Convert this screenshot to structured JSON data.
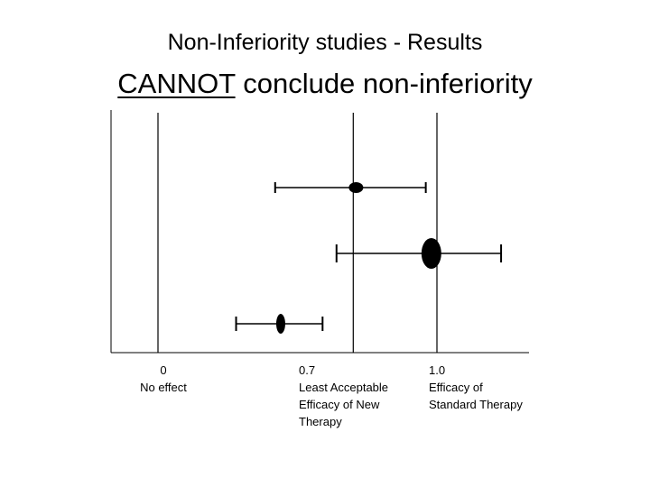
{
  "title": "Non-Inferiority studies - Results",
  "subtitle": {
    "emphasis": "CANNOT",
    "rest": " conclude non-inferiority"
  },
  "chart_data": {
    "type": "scatter",
    "title": "Non-Inferiority studies - Results",
    "subtitle": "CANNOT conclude non-inferiority",
    "xlim": [
      -0.2,
      1.4
    ],
    "grid": false,
    "reference_lines": [
      {
        "x": 0,
        "label_value": "0",
        "label_text": "No effect"
      },
      {
        "x": 0.7,
        "label_value": "0.7",
        "label_text": "Least Acceptable Efficacy of New Therapy"
      },
      {
        "x": 1.0,
        "label_value": "1.0",
        "label_text": "Efficacy of Standard Therapy"
      }
    ],
    "studies": [
      {
        "estimate": 0.71,
        "ci_low": 0.42,
        "ci_high": 0.96
      },
      {
        "estimate": 0.98,
        "ci_low": 0.64,
        "ci_high": 1.23
      },
      {
        "estimate": 0.44,
        "ci_low": 0.28,
        "ci_high": 0.59
      }
    ]
  }
}
